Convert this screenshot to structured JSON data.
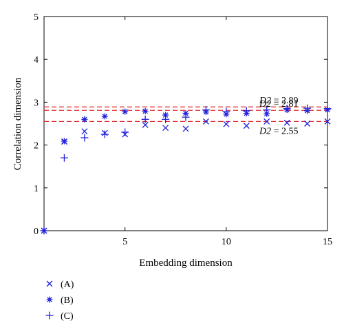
{
  "chart_data": {
    "type": "scatter",
    "xlabel": "Embedding dimension",
    "ylabel": "Correlation dimension",
    "xlim": [
      1,
      15
    ],
    "ylim": [
      0,
      5
    ],
    "xticks": [
      5,
      10,
      15
    ],
    "yticks": [
      0,
      1,
      2,
      3,
      4,
      5
    ],
    "grid": false,
    "legend_position": "bottom-left-outside",
    "series": [
      {
        "name": "(A)",
        "marker": "x",
        "color": "#1f1fdc",
        "x": [
          1,
          2,
          3,
          4,
          5,
          6,
          7,
          8,
          9,
          10,
          11,
          12,
          13,
          14,
          15
        ],
        "y": [
          0,
          2.08,
          2.32,
          2.28,
          2.25,
          2.47,
          2.4,
          2.38,
          2.55,
          2.49,
          2.45,
          2.55,
          2.52,
          2.5,
          2.55
        ]
      },
      {
        "name": "(B)",
        "marker": "asterisk",
        "color": "#1f1fdc",
        "x": [
          1,
          2,
          3,
          4,
          5,
          6,
          7,
          8,
          9,
          10,
          11,
          12,
          13,
          14,
          15
        ],
        "y": [
          0,
          2.09,
          2.6,
          2.67,
          2.78,
          2.79,
          2.7,
          2.74,
          2.77,
          2.72,
          2.74,
          2.73,
          2.82,
          2.8,
          2.82
        ]
      },
      {
        "name": "(C)",
        "marker": "plus",
        "color": "#1f1fdc",
        "x": [
          1,
          2,
          3,
          4,
          5,
          6,
          7,
          8,
          9,
          10,
          11,
          12,
          13,
          14,
          15
        ],
        "y": [
          0,
          1.7,
          2.17,
          2.25,
          2.3,
          2.6,
          2.6,
          2.65,
          2.82,
          2.78,
          2.8,
          2.82,
          2.85,
          2.86,
          2.85
        ]
      }
    ],
    "reference_lines": [
      {
        "y": 2.89,
        "label": "D2 = 2.89",
        "style": "dashed",
        "color": "#e0282d"
      },
      {
        "y": 2.81,
        "label": "D2 = 2.81",
        "style": "dashed",
        "color": "#e0282d"
      },
      {
        "y": 2.55,
        "label": "D2 = 2.55",
        "style": "dashed",
        "color": "#e0282d"
      }
    ],
    "annotations": [
      {
        "symbol": "D2",
        "rest": " = 2.89",
        "anchor_y": 2.89,
        "placement": "above"
      },
      {
        "symbol": "D2",
        "rest": " = 2.81",
        "anchor_y": 2.81,
        "placement": "above"
      },
      {
        "symbol": "D2",
        "rest": " = 2.55",
        "anchor_y": 2.55,
        "placement": "below"
      }
    ]
  }
}
